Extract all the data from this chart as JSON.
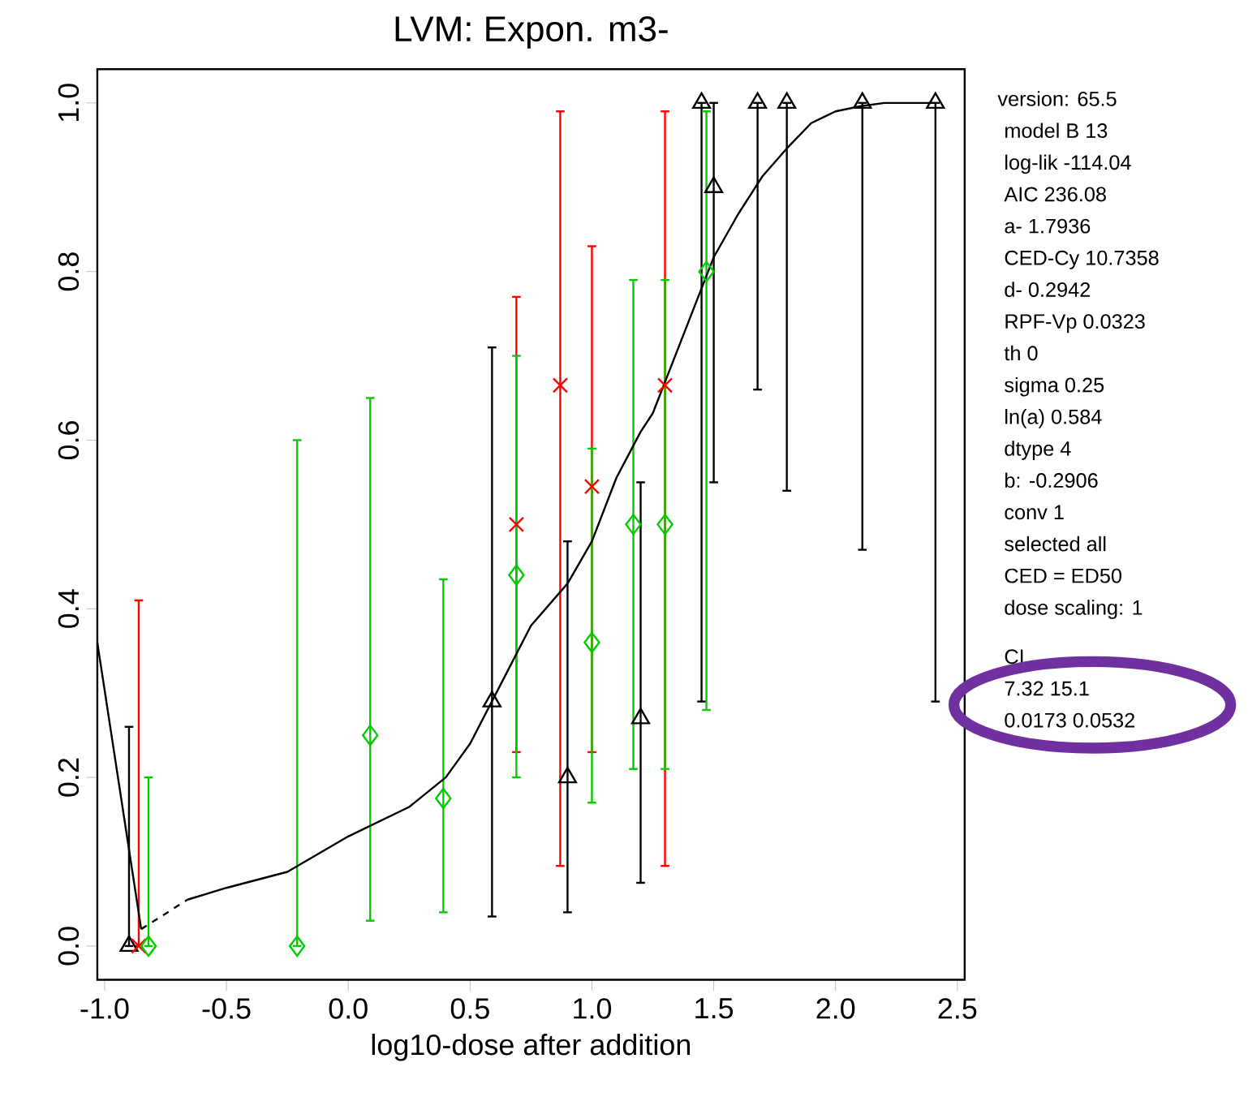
{
  "chart_data": {
    "type": "scatter",
    "title": "LVM: Expon. m3-",
    "xlabel": "log10-dose after addition",
    "xlim": [
      -1.03,
      2.53
    ],
    "ylim": [
      -0.04,
      1.04
    ],
    "xticks": [
      {
        "value": -1.0,
        "label": "-1.0"
      },
      {
        "value": -0.5,
        "label": "-0.5"
      },
      {
        "value": 0.0,
        "label": "0.0"
      },
      {
        "value": 0.5,
        "label": "0.5"
      },
      {
        "value": 1.0,
        "label": "1.0"
      },
      {
        "value": 1.5,
        "label": "1.5"
      },
      {
        "value": 2.0,
        "label": "2.0"
      },
      {
        "value": 2.5,
        "label": "2.5"
      }
    ],
    "yticks": [
      {
        "value": 0.0,
        "label": "0.0"
      },
      {
        "value": 0.2,
        "label": "0.2"
      },
      {
        "value": 0.4,
        "label": "0.4"
      },
      {
        "value": 0.6,
        "label": "0.6"
      },
      {
        "value": 0.8,
        "label": "0.8"
      },
      {
        "value": 1.0,
        "label": "1.0"
      }
    ],
    "grid": false,
    "series": [
      {
        "color": "#000000",
        "marker": "triangle",
        "x": [
          -0.9,
          0.59,
          0.9,
          1.2,
          1.45,
          1.5,
          1.68,
          1.8,
          2.11,
          2.41
        ],
        "values": [
          0.0,
          0.29,
          0.2,
          0.27,
          1.0,
          0.9,
          1.0,
          1.0,
          1.0,
          1.0
        ],
        "errors": [
          [
            0.0,
            0.26
          ],
          [
            0.035,
            0.71
          ],
          [
            0.04,
            0.48
          ],
          [
            0.075,
            0.55
          ],
          [
            0.29,
            1.0
          ],
          [
            0.55,
            1.0
          ],
          [
            0.66,
            1.0
          ],
          [
            0.54,
            1.0
          ],
          [
            0.47,
            1.0
          ],
          [
            0.29,
            1.0
          ]
        ]
      },
      {
        "color": "#ff0000",
        "marker": "cross",
        "x": [
          -0.86,
          0.69,
          0.87,
          1.0,
          1.3
        ],
        "values": [
          0.0,
          0.5,
          0.665,
          0.545,
          0.665
        ],
        "errors": [
          [
            0.0,
            0.41
          ],
          [
            0.23,
            0.77
          ],
          [
            0.095,
            0.99
          ],
          [
            0.23,
            0.83
          ],
          [
            0.095,
            0.99
          ]
        ]
      },
      {
        "color": "#00cc00",
        "marker": "diamond",
        "x": [
          -0.82,
          -0.21,
          0.09,
          0.39,
          0.69,
          1.0,
          1.17,
          1.3,
          1.47
        ],
        "values": [
          0.0,
          0.0,
          0.25,
          0.175,
          0.44,
          0.36,
          0.5,
          0.5,
          0.8
        ],
        "errors": [
          [
            0.0,
            0.2
          ],
          [
            0.0,
            0.6
          ],
          [
            0.03,
            0.65
          ],
          [
            0.04,
            0.435
          ],
          [
            0.2,
            0.7
          ],
          [
            0.17,
            0.59
          ],
          [
            0.21,
            0.79
          ],
          [
            0.21,
            0.79
          ],
          [
            0.28,
            0.99
          ]
        ]
      },
      {
        "type": "line",
        "color": "#000000",
        "marker": "none",
        "line_style": "solid",
        "x": [
          -1.03,
          -0.85
        ],
        "values": [
          0.36,
          0.02
        ]
      },
      {
        "type": "line",
        "color": "#000000",
        "marker": "none",
        "line_style": "dashed",
        "x": [
          -0.85,
          -0.66
        ],
        "values": [
          0.02,
          0.055
        ]
      },
      {
        "type": "line",
        "color": "#000000",
        "marker": "none",
        "line_style": "solid",
        "x": [
          -0.66,
          -0.5,
          -0.25,
          0.0,
          0.25,
          0.4,
          0.5,
          0.6,
          0.75,
          0.9,
          1.0,
          1.1,
          1.2,
          1.25,
          1.4,
          1.5,
          1.6,
          1.7,
          1.8,
          1.9,
          2.0,
          2.1,
          2.2,
          2.4
        ],
        "values": [
          0.055,
          0.069,
          0.088,
          0.13,
          0.165,
          0.2,
          0.24,
          0.296,
          0.38,
          0.43,
          0.48,
          0.555,
          0.61,
          0.632,
          0.743,
          0.817,
          0.868,
          0.913,
          0.946,
          0.976,
          0.99,
          0.996,
          1.0,
          1.0
        ]
      }
    ],
    "annotations": [
      "version: 65.5",
      "model   B 13",
      "log-lik   -114.04",
      "AIC   236.08",
      "a-   1.7936",
      "CED-Cy   10.7358",
      "d-   0.2942",
      "RPF-Vp   0.0323",
      "th   0",
      "sigma   0.25",
      "ln(a)   0.584",
      "dtype   4",
      "b:   -0.2906",
      "conv   1",
      "selected   all",
      "CED = ED50",
      "dose scaling: 1",
      "CI",
      "7.32   15.1",
      "0.0173   0.0532"
    ]
  }
}
